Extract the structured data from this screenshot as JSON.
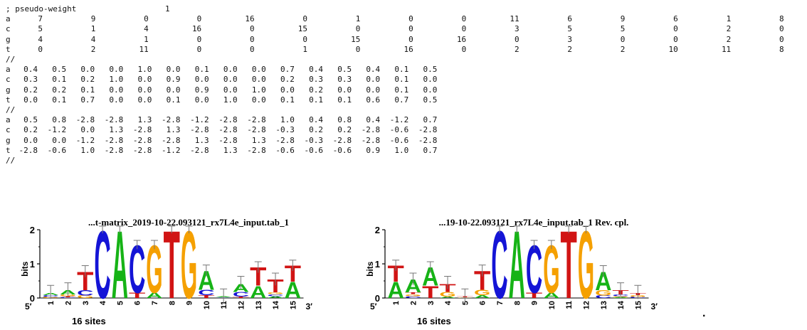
{
  "header": {
    "label": "; pseudo-weight",
    "value": "1"
  },
  "counts": [
    {
      "base": "a",
      "values": [
        "7",
        "9",
        "0",
        "0",
        "16",
        "0",
        "1",
        "0",
        "0",
        "11",
        "6",
        "9",
        "6",
        "1",
        "8"
      ]
    },
    {
      "base": "c",
      "values": [
        "5",
        "1",
        "4",
        "16",
        "0",
        "15",
        "0",
        "0",
        "0",
        "3",
        "5",
        "5",
        "0",
        "2",
        "0"
      ]
    },
    {
      "base": "g",
      "values": [
        "4",
        "4",
        "1",
        "0",
        "0",
        "0",
        "15",
        "0",
        "16",
        "0",
        "3",
        "0",
        "0",
        "2",
        "0"
      ]
    },
    {
      "base": "t",
      "values": [
        "0",
        "2",
        "11",
        "0",
        "0",
        "1",
        "0",
        "16",
        "0",
        "2",
        "2",
        "2",
        "10",
        "11",
        "8"
      ]
    }
  ],
  "sep1": "//",
  "freqs": [
    {
      "base": "a",
      "values": [
        "0.4",
        "0.5",
        "0.0",
        "0.0",
        "1.0",
        "0.0",
        "0.1",
        "0.0",
        "0.0",
        "0.7",
        "0.4",
        "0.5",
        "0.4",
        "0.1",
        "0.5"
      ]
    },
    {
      "base": "c",
      "values": [
        "0.3",
        "0.1",
        "0.2",
        "1.0",
        "0.0",
        "0.9",
        "0.0",
        "0.0",
        "0.0",
        "0.2",
        "0.3",
        "0.3",
        "0.0",
        "0.1",
        "0.0"
      ]
    },
    {
      "base": "g",
      "values": [
        "0.2",
        "0.2",
        "0.1",
        "0.0",
        "0.0",
        "0.0",
        "0.9",
        "0.0",
        "1.0",
        "0.0",
        "0.2",
        "0.0",
        "0.0",
        "0.1",
        "0.0"
      ]
    },
    {
      "base": "t",
      "values": [
        "0.0",
        "0.1",
        "0.7",
        "0.0",
        "0.0",
        "0.1",
        "0.0",
        "1.0",
        "0.0",
        "0.1",
        "0.1",
        "0.1",
        "0.6",
        "0.7",
        "0.5"
      ]
    }
  ],
  "sep2": "//",
  "weights": [
    {
      "base": "a",
      "values": [
        "0.5",
        "0.8",
        "-2.8",
        "-2.8",
        "1.3",
        "-2.8",
        "-1.2",
        "-2.8",
        "-2.8",
        "1.0",
        "0.4",
        "0.8",
        "0.4",
        "-1.2",
        "0.7"
      ]
    },
    {
      "base": "c",
      "values": [
        "0.2",
        "-1.2",
        "0.0",
        "1.3",
        "-2.8",
        "1.3",
        "-2.8",
        "-2.8",
        "-2.8",
        "-0.3",
        "0.2",
        "0.2",
        "-2.8",
        "-0.6",
        "-2.8"
      ]
    },
    {
      "base": "g",
      "values": [
        "0.0",
        "0.0",
        "-1.2",
        "-2.8",
        "-2.8",
        "-2.8",
        "1.3",
        "-2.8",
        "1.3",
        "-2.8",
        "-0.3",
        "-2.8",
        "-2.8",
        "-0.6",
        "-2.8"
      ]
    },
    {
      "base": "t",
      "values": [
        "-2.8",
        "-0.6",
        "1.0",
        "-2.8",
        "-2.8",
        "-1.2",
        "-2.8",
        "1.3",
        "-2.8",
        "-0.6",
        "-0.6",
        "-0.6",
        "0.9",
        "1.0",
        "0.7"
      ]
    }
  ],
  "sep3": "//",
  "logos": [
    {
      "title": "...t-matrix_2019-10-22.093121_rx7L4e_input.tab_1",
      "ylabel": "bits",
      "y_ticks": [
        "0",
        "1",
        "2"
      ],
      "five_prime": "5′",
      "three_prime": "3′",
      "positions": [
        "1",
        "2",
        "3",
        "4",
        "5",
        "6",
        "7",
        "8",
        "9",
        "10",
        "11",
        "12",
        "13",
        "14",
        "15"
      ],
      "sites": "16 sites"
    },
    {
      "title": "...19-10-22.093121_rx7L4e_input.tab_1  Rev. cpl.",
      "ylabel": "bits",
      "y_ticks": [
        "0",
        "1",
        "2"
      ],
      "five_prime": "5′",
      "three_prime": "3′",
      "positions": [
        "1",
        "2",
        "3",
        "4",
        "5",
        "6",
        "7",
        "8",
        "9",
        "10",
        "11",
        "12",
        "13",
        "14",
        "15"
      ],
      "sites": "16 sites"
    }
  ],
  "trailing_mark": ".",
  "colors": {
    "A": "#16b316",
    "C": "#1414d6",
    "G": "#f5a000",
    "T": "#d11414"
  },
  "chart_data": [
    {
      "type": "bar",
      "categories": [
        "1",
        "2",
        "3",
        "4",
        "5",
        "6",
        "7",
        "8",
        "9",
        "10",
        "11",
        "12",
        "13",
        "14",
        "15"
      ],
      "ylim": [
        0,
        2
      ],
      "ylabel": "bits",
      "info_bits": [
        0.17,
        0.25,
        0.78,
        2.0,
        2.0,
        1.56,
        1.56,
        2.0,
        2.0,
        0.8,
        0.06,
        0.45,
        0.9,
        0.55,
        0.95
      ],
      "series": [
        {
          "name": "A",
          "values": [
            0.4,
            0.5,
            0.0,
            0.0,
            1.0,
            0.0,
            0.1,
            0.0,
            0.0,
            0.7,
            0.4,
            0.5,
            0.4,
            0.1,
            0.5
          ]
        },
        {
          "name": "C",
          "values": [
            0.3,
            0.1,
            0.2,
            1.0,
            0.0,
            0.9,
            0.0,
            0.0,
            0.0,
            0.2,
            0.3,
            0.3,
            0.0,
            0.1,
            0.0
          ]
        },
        {
          "name": "G",
          "values": [
            0.2,
            0.2,
            0.1,
            0.0,
            0.0,
            0.0,
            0.9,
            0.0,
            1.0,
            0.0,
            0.2,
            0.0,
            0.0,
            0.1,
            0.0
          ]
        },
        {
          "name": "T",
          "values": [
            0.0,
            0.1,
            0.7,
            0.0,
            0.0,
            0.1,
            0.0,
            1.0,
            0.0,
            0.1,
            0.1,
            0.1,
            0.6,
            0.7,
            0.5
          ]
        }
      ]
    },
    {
      "type": "bar",
      "categories": [
        "1",
        "2",
        "3",
        "4",
        "5",
        "6",
        "7",
        "8",
        "9",
        "10",
        "11",
        "12",
        "13",
        "14",
        "15"
      ],
      "ylim": [
        0,
        2
      ],
      "ylabel": "bits",
      "info_bits": [
        0.95,
        0.55,
        0.9,
        0.45,
        0.06,
        0.8,
        2.0,
        2.0,
        1.56,
        1.56,
        2.0,
        2.0,
        0.78,
        0.25,
        0.17
      ],
      "series": [
        {
          "name": "A",
          "values": [
            0.5,
            0.7,
            0.6,
            0.1,
            0.1,
            0.1,
            0.0,
            1.0,
            0.0,
            0.1,
            0.0,
            0.0,
            0.7,
            0.1,
            0.0
          ]
        },
        {
          "name": "C",
          "values": [
            0.0,
            0.1,
            0.0,
            0.0,
            0.2,
            0.0,
            1.0,
            0.0,
            0.9,
            0.0,
            0.0,
            0.0,
            0.1,
            0.2,
            0.2
          ]
        },
        {
          "name": "G",
          "values": [
            0.0,
            0.1,
            0.0,
            0.3,
            0.3,
            0.2,
            0.0,
            0.0,
            0.0,
            0.9,
            0.0,
            1.0,
            0.2,
            0.1,
            0.3
          ]
        },
        {
          "name": "T",
          "values": [
            0.5,
            0.1,
            0.4,
            0.5,
            0.4,
            0.7,
            0.0,
            0.0,
            0.1,
            0.0,
            1.0,
            0.0,
            0.0,
            0.5,
            0.4
          ]
        }
      ]
    }
  ]
}
